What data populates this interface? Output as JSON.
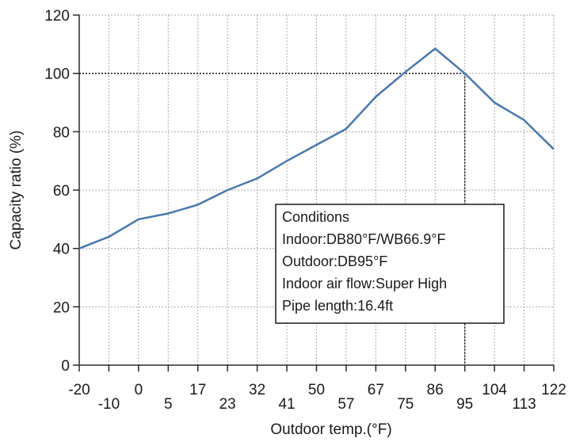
{
  "chart_data": {
    "type": "line",
    "xlabel": "Outdoor temp.(°F)",
    "ylabel": "Capacity ratio (%)",
    "x_ticks": [
      "-20",
      "-10",
      "0",
      "5",
      "17",
      "23",
      "32",
      "41",
      "50",
      "57",
      "67",
      "75",
      "86",
      "95",
      "104",
      "113",
      "122"
    ],
    "y_ticks": [
      "0",
      "20",
      "40",
      "60",
      "80",
      "100",
      "120"
    ],
    "ylim": [
      0,
      120
    ],
    "grid": true,
    "series": [
      {
        "values": [
          40,
          44,
          50,
          52,
          55,
          60,
          64,
          70,
          75.5,
          81,
          92,
          100.5,
          108.5,
          100,
          90,
          84,
          74
        ]
      }
    ],
    "reference_lines": [
      {
        "x_tick": "95",
        "y": 100
      }
    ],
    "conditions_box": {
      "lines": [
        "Conditions",
        "Indoor:DB80°F/WB66.9°F",
        "Outdoor:DB95°F",
        "Indoor air flow:Super High",
        "Pipe length:16.4ft"
      ]
    },
    "colors": {
      "line": "#4a78aa",
      "grid": "#a8a8a8",
      "axis": "#2a2a2a"
    }
  }
}
